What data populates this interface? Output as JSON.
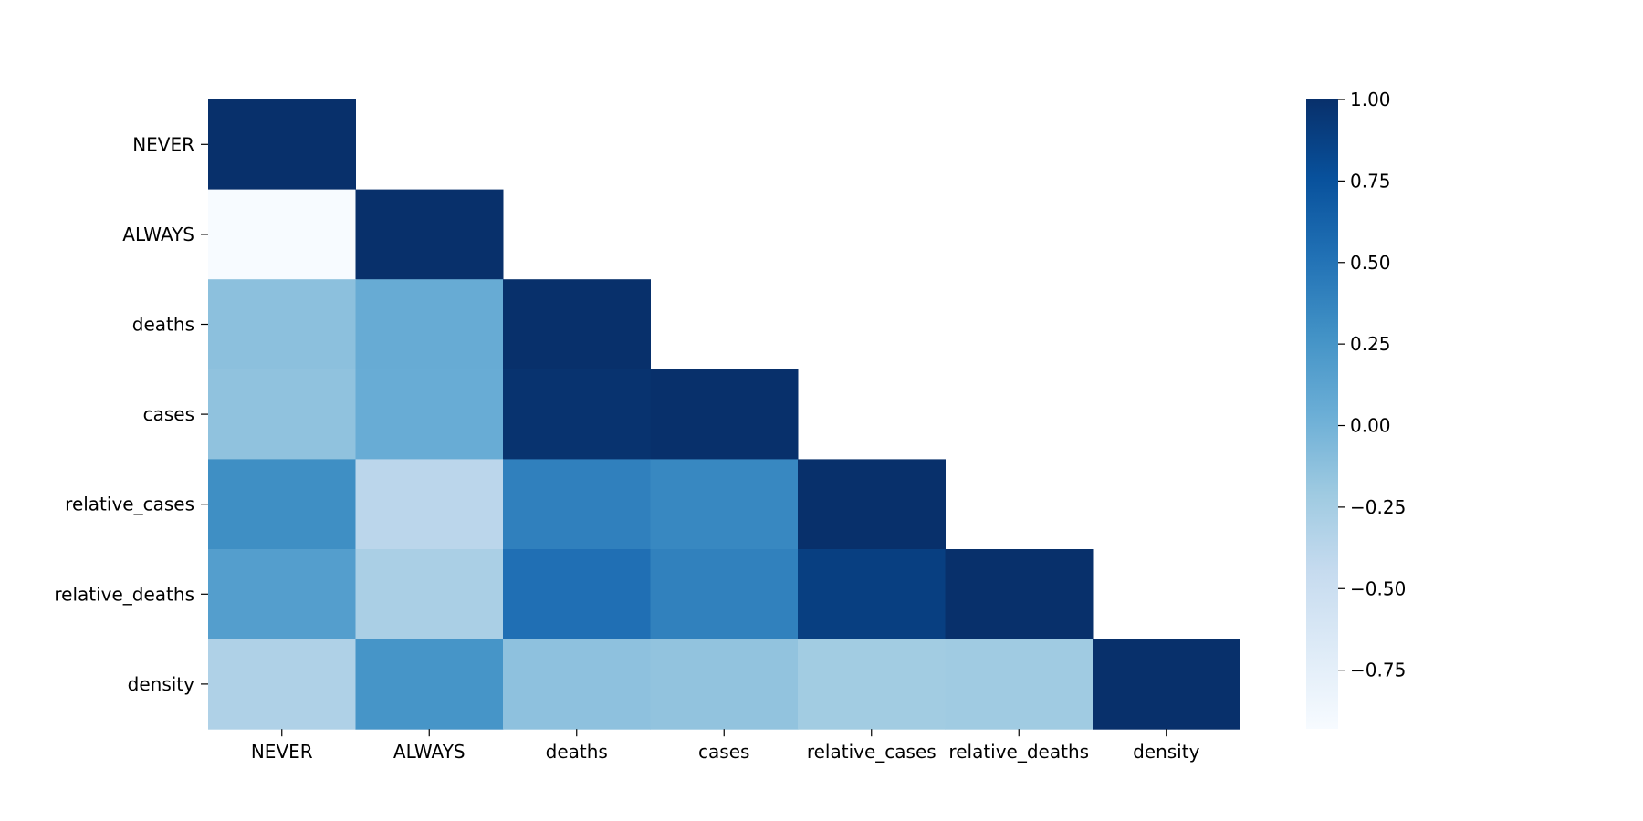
{
  "chart_data": {
    "type": "heatmap",
    "title": "",
    "xlabel": "",
    "ylabel": "",
    "mask": "upper-triangle",
    "rows": [
      "NEVER",
      "ALWAYS",
      "deaths",
      "cases",
      "relative_cases",
      "relative_deaths",
      "density"
    ],
    "columns": [
      "NEVER",
      "ALWAYS",
      "deaths",
      "cases",
      "relative_cases",
      "relative_deaths",
      "density"
    ],
    "values": [
      [
        1.0,
        null,
        null,
        null,
        null,
        null,
        null
      ],
      [
        -0.93,
        1.0,
        null,
        null,
        null,
        null,
        null
      ],
      [
        -0.12,
        0.06,
        1.0,
        null,
        null,
        null,
        null
      ],
      [
        -0.14,
        0.05,
        0.98,
        1.0,
        null,
        null,
        null
      ],
      [
        0.3,
        -0.38,
        0.41,
        0.35,
        1.0,
        null,
        null
      ],
      [
        0.17,
        -0.28,
        0.53,
        0.4,
        0.89,
        1.0,
        null
      ],
      [
        -0.31,
        0.25,
        -0.13,
        -0.15,
        -0.23,
        -0.22,
        1.0
      ]
    ],
    "colorbar": {
      "min": -0.93,
      "max": 1.0,
      "ticks": [
        {
          "value": 1.0,
          "label": "1.00"
        },
        {
          "value": 0.75,
          "label": "0.75"
        },
        {
          "value": 0.5,
          "label": "0.50"
        },
        {
          "value": 0.25,
          "label": "0.25"
        },
        {
          "value": 0.0,
          "label": "0.00"
        },
        {
          "value": -0.25,
          "label": "−0.25"
        },
        {
          "value": -0.5,
          "label": "−0.50"
        },
        {
          "value": -0.75,
          "label": "−0.75"
        }
      ]
    },
    "colormap": "Blues",
    "colors": {
      "low": "#f7fbff",
      "high": "#08306b"
    }
  }
}
